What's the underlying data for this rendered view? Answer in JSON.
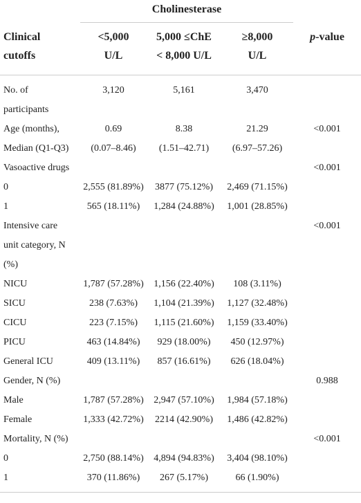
{
  "table": {
    "group_header": "Cholinesterase",
    "columns": [
      [
        "Clinical",
        "cutoffs"
      ],
      [
        "<5,000",
        "U/L"
      ],
      [
        "5,000 ≤ChE",
        "< 8,000 U/L"
      ],
      [
        "≥8,000",
        "U/L"
      ]
    ],
    "p_value_header": {
      "italic": "p",
      "rest": "-value"
    },
    "rows": [
      [
        [
          "No. of",
          "participants"
        ],
        [
          "3,120"
        ],
        [
          "5,161"
        ],
        [
          "3,470"
        ],
        null
      ],
      [
        [
          "Age (months),",
          "Median (Q1-Q3)"
        ],
        [
          "0.69",
          "(0.07–8.46)"
        ],
        [
          "8.38",
          "(1.51–42.71)"
        ],
        [
          "21.29",
          "(6.97–57.26)"
        ],
        [
          "<0.001"
        ]
      ],
      [
        [
          "Vasoactive drugs"
        ],
        null,
        null,
        null,
        [
          "<0.001"
        ]
      ],
      [
        [
          "0"
        ],
        [
          "2,555 (81.89%)"
        ],
        [
          "3877 (75.12%)"
        ],
        [
          "2,469 (71.15%)"
        ],
        null
      ],
      [
        [
          "1"
        ],
        [
          "565 (18.11%)"
        ],
        [
          "1,284 (24.88%)"
        ],
        [
          "1,001 (28.85%)"
        ],
        null
      ],
      [
        [
          "Intensive care",
          "unit category, N",
          "(%)"
        ],
        null,
        null,
        null,
        [
          "<0.001"
        ]
      ],
      [
        [
          "NICU"
        ],
        [
          "1,787 (57.28%)"
        ],
        [
          "1,156 (22.40%)"
        ],
        [
          "108 (3.11%)"
        ],
        null
      ],
      [
        [
          "SICU"
        ],
        [
          "238 (7.63%)"
        ],
        [
          "1,104 (21.39%)"
        ],
        [
          "1,127 (32.48%)"
        ],
        null
      ],
      [
        [
          "CICU"
        ],
        [
          "223 (7.15%)"
        ],
        [
          "1,115 (21.60%)"
        ],
        [
          "1,159 (33.40%)"
        ],
        null
      ],
      [
        [
          "PICU"
        ],
        [
          "463 (14.84%)"
        ],
        [
          "929 (18.00%)"
        ],
        [
          "450 (12.97%)"
        ],
        null
      ],
      [
        [
          "General ICU"
        ],
        [
          "409 (13.11%)"
        ],
        [
          "857 (16.61%)"
        ],
        [
          "626 (18.04%)"
        ],
        null
      ],
      [
        [
          "Gender, N (%)"
        ],
        null,
        null,
        null,
        [
          "0.988"
        ]
      ],
      [
        [
          "Male"
        ],
        [
          "1,787 (57.28%)"
        ],
        [
          "2,947 (57.10%)"
        ],
        [
          "1,984 (57.18%)"
        ],
        null
      ],
      [
        [
          "Female"
        ],
        [
          "1,333 (42.72%)"
        ],
        [
          "2214 (42.90%)"
        ],
        [
          "1,486 (42.82%)"
        ],
        null
      ],
      [
        [
          "Mortality, N (%)"
        ],
        null,
        null,
        null,
        [
          "<0.001"
        ]
      ],
      [
        [
          "0"
        ],
        [
          "2,750 (88.14%)"
        ],
        [
          "4,894 (94.83%)"
        ],
        [
          "3,404 (98.10%)"
        ],
        null
      ],
      [
        [
          "1"
        ],
        [
          "370 (11.86%)"
        ],
        [
          "267 (5.17%)"
        ],
        [
          "66 (1.90%)"
        ],
        null
      ]
    ]
  }
}
